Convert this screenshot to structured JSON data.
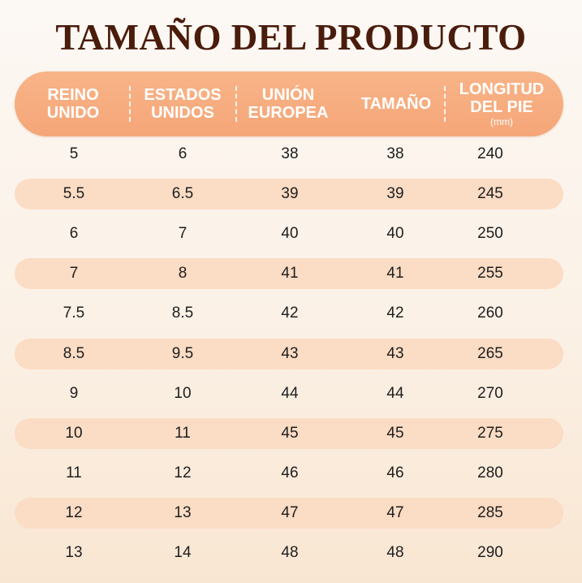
{
  "title": "TAMAÑO DEL PRODUCTO",
  "header": {
    "columns": [
      {
        "line1": "REINO",
        "line2": "UNIDO",
        "unit": ""
      },
      {
        "line1": "ESTADOS",
        "line2": "UNIDOS",
        "unit": ""
      },
      {
        "line1": "UNIÓN",
        "line2": "EUROPEA",
        "unit": ""
      },
      {
        "line1": "TAMAÑO",
        "line2": "",
        "unit": ""
      },
      {
        "line1": "LONGITUD",
        "line2": "DEL PIE",
        "unit": "(mm)"
      }
    ]
  },
  "rows": [
    [
      "5",
      "6",
      "38",
      "38",
      "240"
    ],
    [
      "5.5",
      "6.5",
      "39",
      "39",
      "245"
    ],
    [
      "6",
      "7",
      "40",
      "40",
      "250"
    ],
    [
      "7",
      "8",
      "41",
      "41",
      "255"
    ],
    [
      "7.5",
      "8.5",
      "42",
      "42",
      "260"
    ],
    [
      "8.5",
      "9.5",
      "43",
      "43",
      "265"
    ],
    [
      "9",
      "10",
      "44",
      "44",
      "270"
    ],
    [
      "10",
      "11",
      "45",
      "45",
      "275"
    ],
    [
      "11",
      "12",
      "46",
      "46",
      "280"
    ],
    [
      "12",
      "13",
      "47",
      "47",
      "285"
    ],
    [
      "13",
      "14",
      "48",
      "48",
      "290"
    ]
  ],
  "colors": {
    "header_bg": "#f6aa7c",
    "row_band": "#fbdcc4",
    "title": "#4a1c0c",
    "text": "#1e1e1e"
  }
}
